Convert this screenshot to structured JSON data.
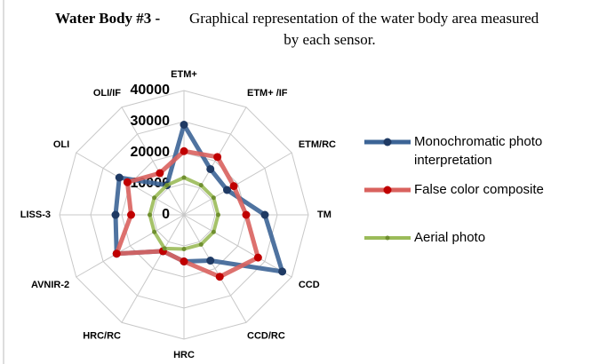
{
  "chart_data": {
    "type": "radar",
    "title_prefix": "Water Body #3 -",
    "title_lines": [
      "Graphical representation of the water body area measured",
      "by each sensor."
    ],
    "categories": [
      "ETM+",
      "ETM+ /IF",
      "ETM/RC",
      "TM",
      "CCD",
      "CCD/RC",
      "HRC",
      "HRC/RC",
      "AVNIR-2",
      "LISS-3",
      "OLI",
      "OLI/IF"
    ],
    "ylim": [
      0,
      40000
    ],
    "yticks": [
      0,
      10000,
      20000,
      30000,
      40000
    ],
    "grid": true,
    "series": [
      {
        "name": "Monochromatic photo interpretation",
        "color": "#3c6496",
        "values": [
          29000,
          17000,
          16000,
          26000,
          36500,
          17000,
          15000,
          13500,
          25000,
          22000,
          24000,
          11000
        ]
      },
      {
        "name": "False color composite",
        "color": "#d9625e",
        "values": [
          20500,
          21500,
          18500,
          20000,
          27500,
          23000,
          15000,
          13500,
          25000,
          17000,
          21000,
          15500
        ]
      },
      {
        "name": "Aerial photo",
        "color": "#9bbb59",
        "values": [
          12000,
          11000,
          11000,
          11000,
          11000,
          11000,
          11000,
          12500,
          11000,
          11000,
          11000,
          11000
        ]
      }
    ]
  }
}
